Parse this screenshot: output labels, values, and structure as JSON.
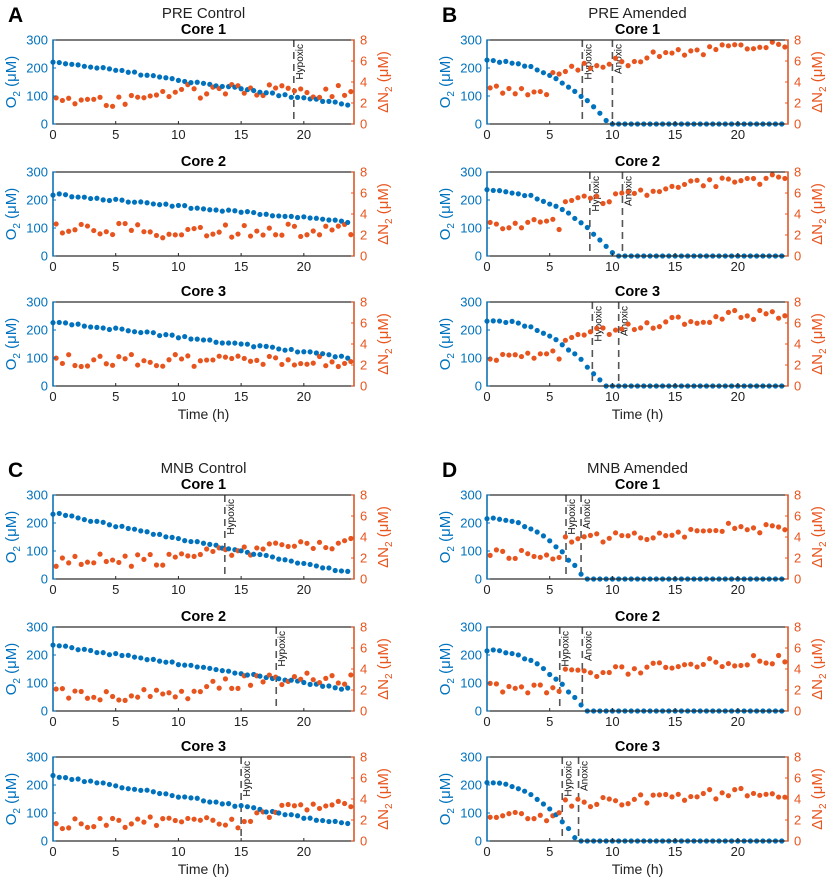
{
  "style": {
    "o2_color": "#0072BD",
    "n2_color": "#E8541E",
    "axis_color": "#262626",
    "line_color": "#555555"
  },
  "labels": {
    "x_label": "Time (h)",
    "y_left": {
      "base": "O",
      "sub": "2",
      "unit": " (μM)"
    },
    "y_right": {
      "base": "ΔN",
      "sub": "2",
      "unit": " (μM)"
    }
  },
  "axes": {
    "x_ticks": [
      0,
      5,
      10,
      15,
      20
    ],
    "y_left_ticks": [
      0,
      100,
      200,
      300
    ],
    "y_right_ticks": [
      0,
      2,
      4,
      6,
      8
    ],
    "x_range": [
      0,
      24
    ],
    "y_left_range": [
      0,
      300
    ],
    "y_right_range": [
      0,
      8
    ]
  },
  "chart_data": [
    {
      "panel": "A",
      "title": "PRE Control",
      "type": "scatter",
      "cores": [
        {
          "title": "Core 1",
          "markers": [
            {
              "x": 19.2,
              "label": "Hypoxic"
            }
          ],
          "o2": {
            "start": 225,
            "end": 65,
            "zero_at": null,
            "tail": 0
          },
          "n2": {
            "base": 2.2,
            "step": 7,
            "step_level": 3.0,
            "plateau": 3.2,
            "amp": 0.7
          }
        },
        {
          "title": "Core 2",
          "markers": [],
          "o2": {
            "start": 220,
            "end": 120,
            "zero_at": null,
            "tail": 0
          },
          "n2": {
            "base": 2.4,
            "step": 99,
            "step_level": 2.5,
            "plateau": 2.5,
            "amp": 0.7
          }
        },
        {
          "title": "Core 3",
          "markers": [],
          "o2": {
            "start": 230,
            "end": 100,
            "zero_at": null,
            "tail": 0
          },
          "n2": {
            "base": 2.4,
            "step": 99,
            "step_level": 2.6,
            "plateau": 2.6,
            "amp": 0.6
          }
        }
      ]
    },
    {
      "panel": "B",
      "title": "PRE Amended",
      "type": "scatter",
      "cores": [
        {
          "title": "Core 1",
          "markers": [
            {
              "x": 7.6,
              "label": "Hypoxic"
            },
            {
              "x": 10.0,
              "label": "Anoxic"
            }
          ],
          "o2": {
            "start": 225,
            "end": 0,
            "zero_at": 9.8,
            "tail": 0
          },
          "n2": {
            "base": 3.2,
            "step": 5,
            "step_level": 5.0,
            "plateau": 7.5,
            "amp": 0.5
          }
        },
        {
          "title": "Core 2",
          "markers": [
            {
              "x": 8.2,
              "label": "Hypoxic"
            },
            {
              "x": 10.8,
              "label": "Anoxic"
            }
          ],
          "o2": {
            "start": 235,
            "end": 0,
            "zero_at": 10.3,
            "tail": 0
          },
          "n2": {
            "base": 3.0,
            "step": 6,
            "step_level": 5.0,
            "plateau": 7.3,
            "amp": 0.5
          }
        },
        {
          "title": "Core 3",
          "markers": [
            {
              "x": 8.4,
              "label": "Hypoxic"
            },
            {
              "x": 10.5,
              "label": "Anoxic"
            }
          ],
          "o2": {
            "start": 235,
            "end": 0,
            "zero_at": 9.4,
            "tail": 0
          },
          "n2": {
            "base": 2.9,
            "step": 6,
            "step_level": 4.8,
            "plateau": 6.8,
            "amp": 0.5
          }
        }
      ]
    },
    {
      "panel": "C",
      "title": "MNB Control",
      "type": "scatter",
      "cores": [
        {
          "title": "Core 1",
          "markers": [
            {
              "x": 13.7,
              "label": "Hypoxic"
            }
          ],
          "o2": {
            "start": 235,
            "end": 20,
            "zero_at": null,
            "tail": 0
          },
          "n2": {
            "base": 1.8,
            "step": 10,
            "step_level": 2.4,
            "plateau": 3.3,
            "amp": 0.6
          }
        },
        {
          "title": "Core 2",
          "markers": [
            {
              "x": 17.8,
              "label": "Hypoxic"
            }
          ],
          "o2": {
            "start": 235,
            "end": 75,
            "zero_at": null,
            "tail": 0
          },
          "n2": {
            "base": 1.6,
            "step": 12,
            "step_level": 2.6,
            "plateau": 3.1,
            "amp": 0.6
          }
        },
        {
          "title": "Core 3",
          "markers": [
            {
              "x": 15.0,
              "label": "Hypoxic"
            }
          ],
          "o2": {
            "start": 235,
            "end": 55,
            "zero_at": null,
            "tail": 0
          },
          "n2": {
            "base": 1.7,
            "step": 16,
            "step_level": 2.7,
            "plateau": 3.6,
            "amp": 0.6
          }
        }
      ]
    },
    {
      "panel": "D",
      "title": "MNB Amended",
      "type": "scatter",
      "cores": [
        {
          "title": "Core 1",
          "markers": [
            {
              "x": 6.3,
              "label": "Hypoxic"
            },
            {
              "x": 7.5,
              "label": "Anoxic"
            }
          ],
          "o2": {
            "start": 215,
            "end": 0,
            "zero_at": 7.8,
            "tail": 0
          },
          "n2": {
            "base": 2.4,
            "step": 6,
            "step_level": 3.6,
            "plateau": 4.9,
            "amp": 0.5
          }
        },
        {
          "title": "Core 2",
          "markers": [
            {
              "x": 5.8,
              "label": "Hypoxic"
            },
            {
              "x": 7.6,
              "label": "Anoxic"
            }
          ],
          "o2": {
            "start": 215,
            "end": 0,
            "zero_at": 7.8,
            "tail": 0
          },
          "n2": {
            "base": 2.2,
            "step": 6,
            "step_level": 3.5,
            "plateau": 4.8,
            "amp": 0.5
          }
        },
        {
          "title": "Core 3",
          "markers": [
            {
              "x": 6.0,
              "label": "Hypoxic"
            },
            {
              "x": 7.3,
              "label": "Anoxic"
            }
          ],
          "o2": {
            "start": 210,
            "end": 0,
            "zero_at": 7.2,
            "tail": 0
          },
          "n2": {
            "base": 2.3,
            "step": 6,
            "step_level": 3.6,
            "plateau": 4.6,
            "amp": 0.5
          }
        }
      ]
    }
  ]
}
